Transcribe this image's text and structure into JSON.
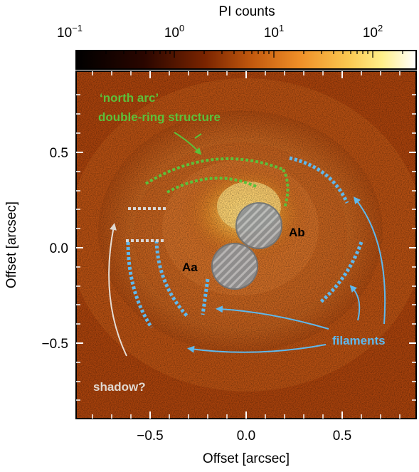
{
  "colorbar": {
    "label": "PI counts",
    "ticks": [
      {
        "base": "10",
        "exp": "−1"
      },
      {
        "base": "10",
        "exp": "0"
      },
      {
        "base": "10",
        "exp": "1"
      },
      {
        "base": "10",
        "exp": "2"
      }
    ],
    "scale": "log",
    "colormap": [
      "#000000",
      "#3a0a00",
      "#7a2400",
      "#b84a08",
      "#e07a18",
      "#f5b43a",
      "#fde88a",
      "#ffffff"
    ]
  },
  "axes": {
    "xlabel": "Offset [arcsec]",
    "ylabel": "Offset [arcsec]",
    "xticks": [
      "−0.5",
      "0.0",
      "0.5"
    ],
    "yticks": [
      "0.5",
      "0.0",
      "−0.5"
    ]
  },
  "annotations": {
    "north_arc_line1": "‘north arc’",
    "north_arc_line2": "double-ring structure",
    "star_a": "Aa",
    "star_b": "Ab",
    "filaments": "filaments",
    "shadow": "shadow?"
  },
  "colors": {
    "green": "#5cc03a",
    "blue": "#5fb8ec",
    "grey": "#d0d0d0",
    "star_fill": "#8a8f94"
  }
}
